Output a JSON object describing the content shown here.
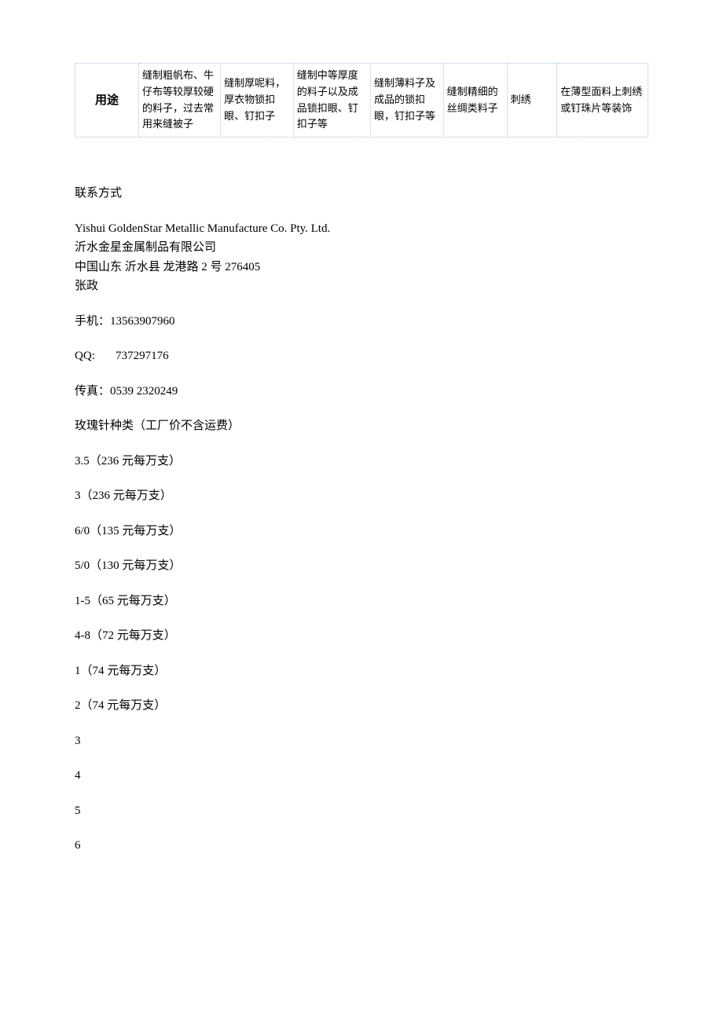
{
  "table": {
    "header": "用途",
    "cells": [
      "缝制粗帆布、牛仔布等较厚较硬的料子，过去常用来缝被子",
      "缝制厚呢料，厚衣物锁扣眼、钉扣子",
      "缝制中等厚度的料子以及成品锁扣眼、钉扣子等",
      "缝制薄料子及成品的锁扣眼，钉扣子等",
      "缝制精细的丝绸类料子",
      "刺绣",
      "在薄型面料上刺绣或钉珠片等装饰"
    ]
  },
  "contact": {
    "title": "联系方式",
    "company_en": "Yishui GoldenStar Metallic Manufacture Co. Pty. Ltd.",
    "company_zh": "沂水金星金属制品有限公司",
    "address": "中国山东 沂水县 龙港路 2 号 276405",
    "person": "张政",
    "mobile_label": "手机：",
    "mobile_value": "13563907960",
    "qq_label": "QQ:",
    "qq_value": "737297176",
    "fax_label": "传真：",
    "fax_value": "0539 2320249"
  },
  "prices": {
    "title": "玫瑰针种类（工厂价不含运费）",
    "items": [
      "3.5（236 元每万支）",
      "3（236 元每万支）",
      "6/0（135 元每万支）",
      "5/0（130 元每万支）",
      "1-5（65 元每万支）",
      "4-8（72 元每万支）",
      "1（74 元每万支）",
      "2（74 元每万支）"
    ],
    "numbers": [
      "3",
      "4",
      "5",
      "6"
    ]
  }
}
